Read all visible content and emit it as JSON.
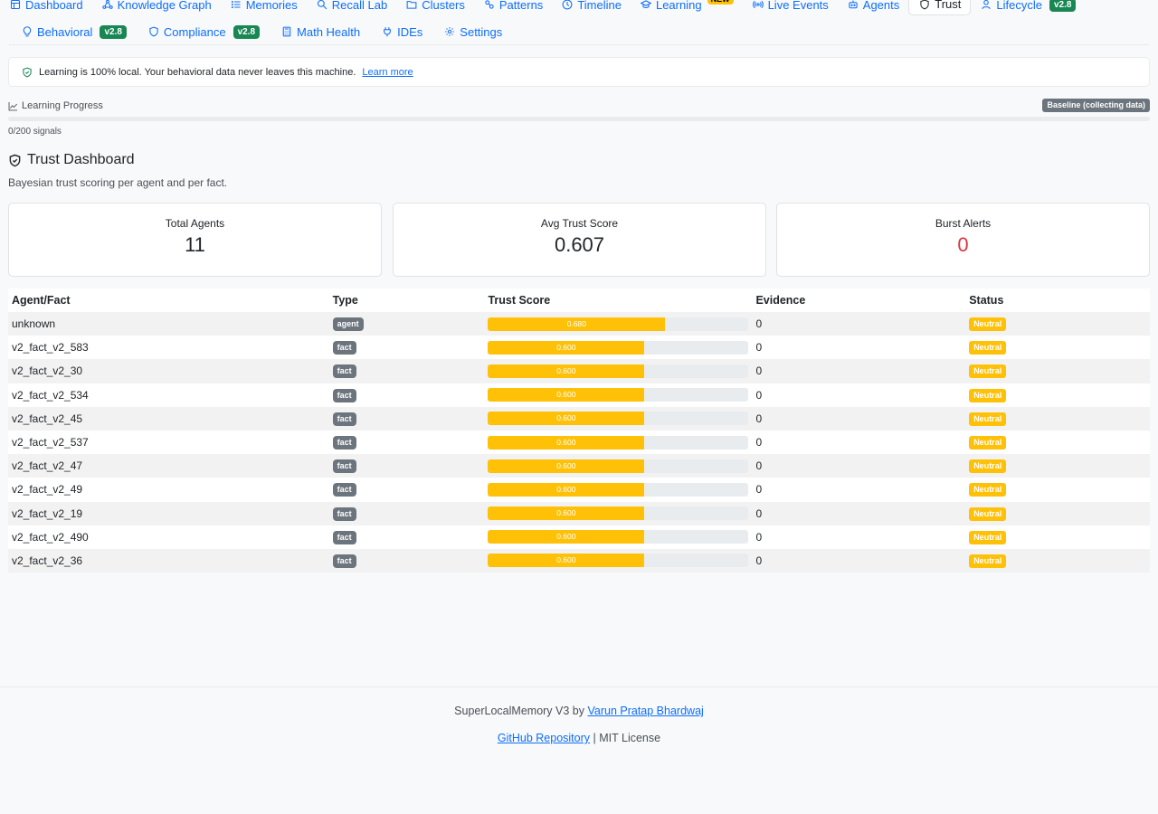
{
  "nav": {
    "row1": [
      {
        "label": "Dashboard",
        "icon": "dashboard-icon",
        "active": false
      },
      {
        "label": "Knowledge Graph",
        "icon": "graph-icon",
        "active": false
      },
      {
        "label": "Memories",
        "icon": "list-icon",
        "active": false
      },
      {
        "label": "Recall Lab",
        "icon": "search-icon",
        "active": false
      },
      {
        "label": "Clusters",
        "icon": "folder-icon",
        "active": false
      },
      {
        "label": "Patterns",
        "icon": "patterns-icon",
        "active": false
      },
      {
        "label": "Timeline",
        "icon": "clock-icon",
        "active": false
      },
      {
        "label": "Learning",
        "icon": "learning-icon",
        "active": false,
        "badge": "NEW"
      },
      {
        "label": "Live Events",
        "icon": "broadcast-icon",
        "active": false
      },
      {
        "label": "Agents",
        "icon": "robot-icon",
        "active": false
      },
      {
        "label": "Trust",
        "icon": "shield-icon",
        "active": true
      },
      {
        "label": "Lifecycle",
        "icon": "person-icon",
        "active": false,
        "badge": "v2.8"
      }
    ],
    "row2": [
      {
        "label": "Behavioral",
        "icon": "lightbulb-icon",
        "badge": "v2.8"
      },
      {
        "label": "Compliance",
        "icon": "shield-icon",
        "badge": "v2.8"
      },
      {
        "label": "Math Health",
        "icon": "calculator-icon"
      },
      {
        "label": "IDEs",
        "icon": "plug-icon"
      },
      {
        "label": "Settings",
        "icon": "gear-icon"
      }
    ]
  },
  "privacy": {
    "text": "Learning is 100% local. Your behavioral data never leaves this machine.",
    "link": "Learn more"
  },
  "learning": {
    "label": "Learning Progress",
    "badge": "Baseline (collecting data)",
    "progress": 0,
    "count_text": "0/200 signals"
  },
  "trust": {
    "title": "Trust Dashboard",
    "subtitle": "Bayesian trust scoring per agent and per fact."
  },
  "stats": [
    {
      "label": "Total Agents",
      "value": "11",
      "color": "#212529"
    },
    {
      "label": "Avg Trust Score",
      "value": "0.607",
      "color": "#212529"
    },
    {
      "label": "Burst Alerts",
      "value": "0",
      "color": "#dc3545"
    }
  ],
  "table": {
    "headers": [
      "Agent/Fact",
      "Type",
      "Trust Score",
      "Evidence",
      "Status"
    ],
    "rows": [
      {
        "name": "unknown",
        "type": "agent",
        "score": 0.68,
        "score_label": "0.680",
        "evidence": "0",
        "status": "Neutral"
      },
      {
        "name": "v2_fact_v2_583",
        "type": "fact",
        "score": 0.6,
        "score_label": "0.600",
        "evidence": "0",
        "status": "Neutral"
      },
      {
        "name": "v2_fact_v2_30",
        "type": "fact",
        "score": 0.6,
        "score_label": "0.600",
        "evidence": "0",
        "status": "Neutral"
      },
      {
        "name": "v2_fact_v2_534",
        "type": "fact",
        "score": 0.6,
        "score_label": "0.600",
        "evidence": "0",
        "status": "Neutral"
      },
      {
        "name": "v2_fact_v2_45",
        "type": "fact",
        "score": 0.6,
        "score_label": "0.600",
        "evidence": "0",
        "status": "Neutral"
      },
      {
        "name": "v2_fact_v2_537",
        "type": "fact",
        "score": 0.6,
        "score_label": "0.600",
        "evidence": "0",
        "status": "Neutral"
      },
      {
        "name": "v2_fact_v2_47",
        "type": "fact",
        "score": 0.6,
        "score_label": "0.600",
        "evidence": "0",
        "status": "Neutral"
      },
      {
        "name": "v2_fact_v2_49",
        "type": "fact",
        "score": 0.6,
        "score_label": "0.600",
        "evidence": "0",
        "status": "Neutral"
      },
      {
        "name": "v2_fact_v2_19",
        "type": "fact",
        "score": 0.6,
        "score_label": "0.600",
        "evidence": "0",
        "status": "Neutral"
      },
      {
        "name": "v2_fact_v2_490",
        "type": "fact",
        "score": 0.6,
        "score_label": "0.600",
        "evidence": "0",
        "status": "Neutral"
      },
      {
        "name": "v2_fact_v2_36",
        "type": "fact",
        "score": 0.6,
        "score_label": "0.600",
        "evidence": "0",
        "status": "Neutral"
      }
    ]
  },
  "footer": {
    "prefix": "SuperLocalMemory V3 by",
    "author": "Varun Pratap Bhardwaj",
    "repo": "GitHub Repository",
    "separator": "|",
    "license": "MIT License"
  }
}
